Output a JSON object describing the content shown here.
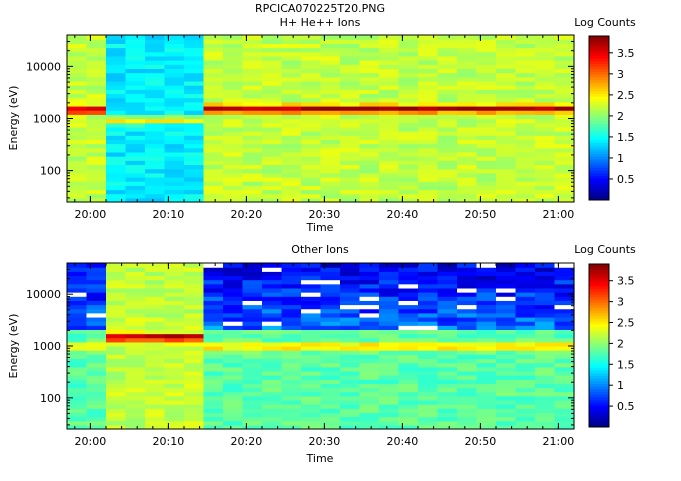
{
  "file_title": "RPCICA070225T20.PNG",
  "chart_data": [
    {
      "type": "heatmap",
      "title": "H+ He++ Ions",
      "xlabel": "Time",
      "ylabel": "Energy (eV)",
      "y_scale": "log",
      "ylim": [
        25,
        40000
      ],
      "x_range": [
        "19:57",
        "21:02"
      ],
      "x_ticks": [
        "20:00",
        "20:10",
        "20:20",
        "20:30",
        "20:40",
        "20:50",
        "21:00"
      ],
      "y_ticks": [
        "100",
        "1000",
        "10000"
      ],
      "colorbar": {
        "label": "Log Counts",
        "range": [
          0,
          3.9
        ],
        "ticks": [
          "0.5",
          "1",
          "1.5",
          "2",
          "2.5",
          "3",
          "3.5"
        ]
      },
      "segments": [
        {
          "start": "19:57",
          "end": "20:01",
          "state": "full",
          "peak_energy_ev": 1500,
          "peak_log": 3.8,
          "background_log": 2.2
        },
        {
          "start": "20:01",
          "end": "20:14",
          "state": "low",
          "peak_energy_ev": 950,
          "peak_log": 2.6,
          "background_log": 1.4
        },
        {
          "start": "20:14",
          "end": "21:02",
          "state": "full",
          "peak_energy_ev": 1550,
          "peak_log": 3.75,
          "background_log": 2.2
        }
      ]
    },
    {
      "type": "heatmap",
      "title": "Other Ions",
      "xlabel": "Time",
      "ylabel": "Energy (eV)",
      "y_scale": "log",
      "ylim": [
        25,
        40000
      ],
      "x_range": [
        "19:57",
        "21:02"
      ],
      "x_ticks": [
        "20:00",
        "20:10",
        "20:20",
        "20:30",
        "20:40",
        "20:50",
        "21:00"
      ],
      "y_ticks": [
        "100",
        "1000",
        "10000"
      ],
      "colorbar": {
        "label": "Log Counts",
        "range": [
          0,
          3.9
        ],
        "ticks": [
          "0.5",
          "1",
          "1.5",
          "2",
          "2.5",
          "3",
          "3.5"
        ]
      },
      "segments": [
        {
          "start": "19:57",
          "end": "20:01",
          "state": "sparse",
          "peak_energy_ev": 1000,
          "peak_log": 2.7,
          "background_log": 1.8
        },
        {
          "start": "20:01",
          "end": "20:14",
          "state": "full",
          "peak_energy_ev": 1500,
          "peak_log": 3.8,
          "background_log": 2.2
        },
        {
          "start": "20:14",
          "end": "21:02",
          "state": "sparse",
          "peak_energy_ev": 1000,
          "peak_log": 2.7,
          "background_log": 1.8
        }
      ]
    }
  ]
}
